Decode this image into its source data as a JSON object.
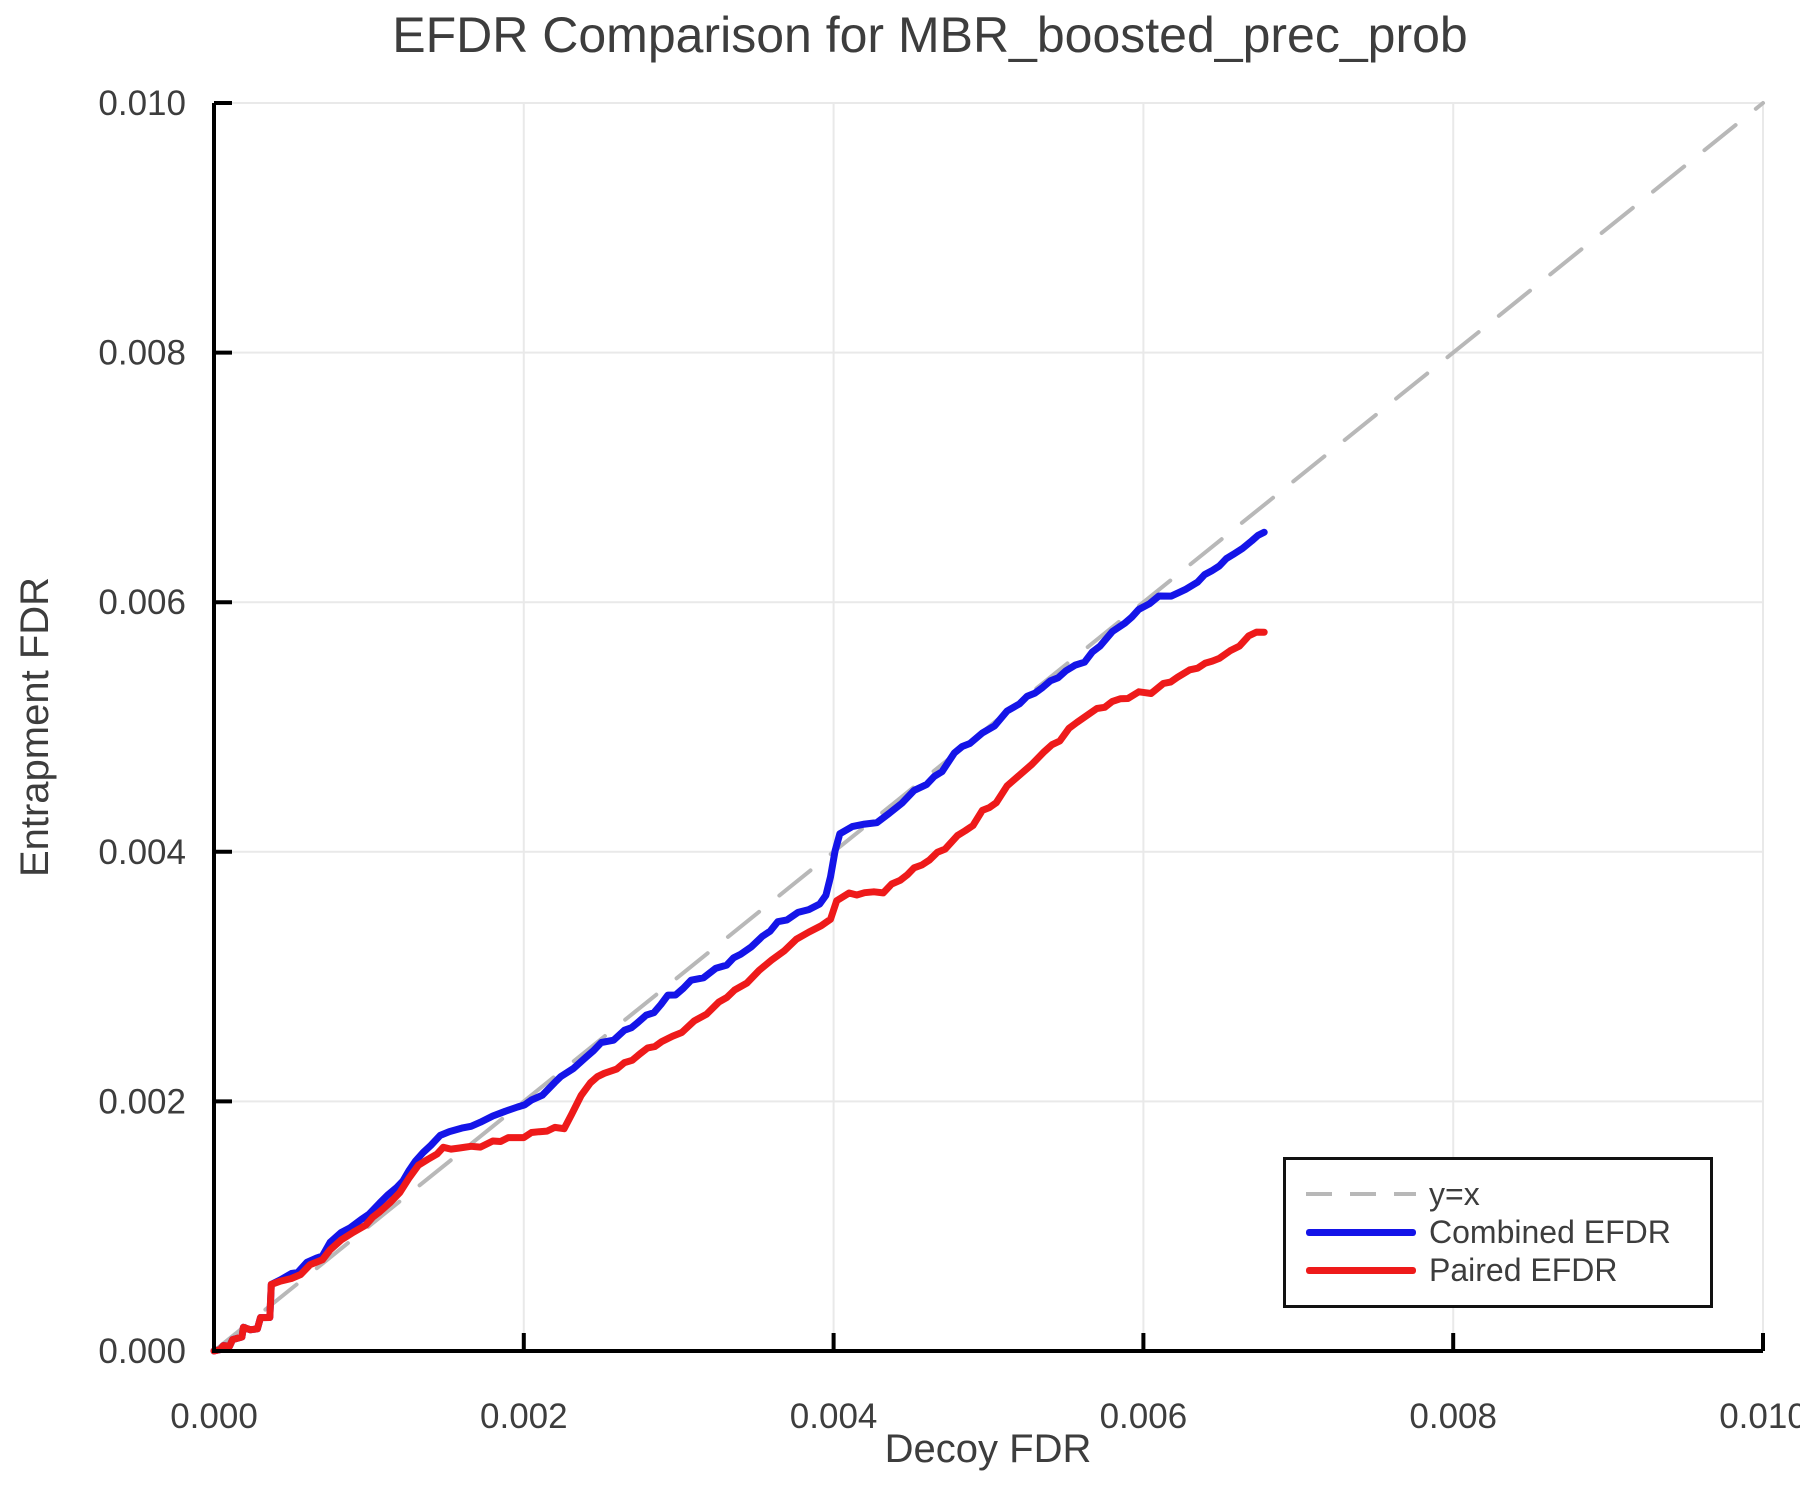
{
  "chart_data": {
    "type": "line",
    "title": "EFDR Comparison for MBR_boosted_prec_prob",
    "xlabel": "Decoy FDR",
    "ylabel": "Entrapment FDR",
    "xlim": [
      0,
      0.01
    ],
    "ylim": [
      0,
      0.01
    ],
    "xticks": [
      0,
      0.002,
      0.004,
      0.006,
      0.008,
      0.01
    ],
    "xticklabels": [
      "0.000",
      "0.002",
      "0.004",
      "0.006",
      "0.008",
      "0.010"
    ],
    "yticks": [
      0,
      0.002,
      0.004,
      0.006,
      0.008,
      0.01
    ],
    "yticklabels": [
      "0.000",
      "0.002",
      "0.004",
      "0.006",
      "0.008",
      "0.010"
    ],
    "grid": true,
    "grid_color": "#e9e9e9",
    "axis_color": "#000000",
    "text_color": "#3d3d3d",
    "legend_position": "lower right",
    "series": [
      {
        "name": "y=x",
        "color": "#b8b8b8",
        "width": 4,
        "dash": [
          40,
          26
        ],
        "points": [
          [
            0,
            0
          ],
          [
            0.01,
            0.01
          ]
        ]
      },
      {
        "name": "Combined EFDR",
        "color": "#1414e8",
        "width": 7,
        "points": [
          [
            0,
            0
          ],
          [
            4e-05,
            0
          ],
          [
            6e-05,
            4e-05
          ],
          [
            0.0001,
            5e-05
          ],
          [
            0.00012,
            0.0001
          ],
          [
            0.00018,
            0.0001
          ],
          [
            0.00019,
            0.00018
          ],
          [
            0.00028,
            0.00018
          ],
          [
            0.0003,
            0.00026
          ],
          [
            0.00036,
            0.00027
          ],
          [
            0.00037,
            0.00054
          ],
          [
            0.00043,
            0.00057
          ],
          [
            0.0005,
            0.00062
          ],
          [
            0.00054,
            0.00064
          ],
          [
            0.0006,
            0.0007
          ],
          [
            0.00066,
            0.00075
          ],
          [
            0.0007,
            0.00077
          ],
          [
            0.00075,
            0.00086
          ],
          [
            0.00082,
            0.00096
          ],
          [
            0.00088,
            0.00098
          ],
          [
            0.00095,
            0.00106
          ],
          [
            0.001,
            0.0011
          ],
          [
            0.00107,
            0.00118
          ],
          [
            0.00112,
            0.00126
          ],
          [
            0.00118,
            0.0013
          ],
          [
            0.00122,
            0.00136
          ],
          [
            0.00126,
            0.00146
          ],
          [
            0.0013,
            0.00152
          ],
          [
            0.00135,
            0.00158
          ],
          [
            0.0014,
            0.00166
          ],
          [
            0.00146,
            0.00172
          ],
          [
            0.00152,
            0.00176
          ],
          [
            0.0016,
            0.00178
          ],
          [
            0.00166,
            0.0018
          ],
          [
            0.00172,
            0.00184
          ],
          [
            0.0018,
            0.00188
          ],
          [
            0.00188,
            0.00192
          ],
          [
            0.00196,
            0.00196
          ],
          [
            0.00205,
            0.002
          ],
          [
            0.00212,
            0.00206
          ],
          [
            0.0022,
            0.00214
          ],
          [
            0.00224,
            0.0022
          ],
          [
            0.00232,
            0.00226
          ],
          [
            0.0024,
            0.00236
          ],
          [
            0.0025,
            0.00246
          ],
          [
            0.00258,
            0.0025
          ],
          [
            0.00265,
            0.00256
          ],
          [
            0.00274,
            0.00264
          ],
          [
            0.00284,
            0.00272
          ],
          [
            0.00293,
            0.00284
          ],
          [
            0.00298,
            0.00286
          ],
          [
            0.00308,
            0.00296
          ],
          [
            0.00316,
            0.003
          ],
          [
            0.00324,
            0.00306
          ],
          [
            0.00331,
            0.0031
          ],
          [
            0.0034,
            0.00318
          ],
          [
            0.00347,
            0.00324
          ],
          [
            0.00354,
            0.00332
          ],
          [
            0.00364,
            0.00343
          ],
          [
            0.0037,
            0.00346
          ],
          [
            0.00377,
            0.00351
          ],
          [
            0.00384,
            0.00354
          ],
          [
            0.00391,
            0.00358
          ],
          [
            0.00395,
            0.00364
          ],
          [
            0.00398,
            0.0038
          ],
          [
            0.00401,
            0.00402
          ],
          [
            0.00404,
            0.00415
          ],
          [
            0.00412,
            0.0042
          ],
          [
            0.0042,
            0.00422
          ],
          [
            0.00428,
            0.00424
          ],
          [
            0.00436,
            0.0043
          ],
          [
            0.00444,
            0.0044
          ],
          [
            0.00452,
            0.00448
          ],
          [
            0.0046,
            0.00455
          ],
          [
            0.0047,
            0.00464
          ],
          [
            0.00478,
            0.00479
          ],
          [
            0.00488,
            0.00488
          ],
          [
            0.00496,
            0.00494
          ],
          [
            0.00504,
            0.00502
          ],
          [
            0.00512,
            0.00512
          ],
          [
            0.0052,
            0.00519
          ],
          [
            0.0053,
            0.00528
          ],
          [
            0.0054,
            0.00536
          ],
          [
            0.0055,
            0.00545
          ],
          [
            0.00562,
            0.00553
          ],
          [
            0.00572,
            0.00565
          ],
          [
            0.0058,
            0.00576
          ],
          [
            0.00588,
            0.00584
          ],
          [
            0.00597,
            0.00593
          ],
          [
            0.00604,
            0.006
          ],
          [
            0.0061,
            0.00604
          ],
          [
            0.00618,
            0.00606
          ],
          [
            0.00627,
            0.00609
          ],
          [
            0.00635,
            0.00617
          ],
          [
            0.00644,
            0.00625
          ],
          [
            0.00649,
            0.0063
          ],
          [
            0.00658,
            0.00638
          ],
          [
            0.00664,
            0.00644
          ],
          [
            0.0067,
            0.00648
          ],
          [
            0.00674,
            0.00654
          ],
          [
            0.00678,
            0.00657
          ]
        ]
      },
      {
        "name": "Paired EFDR",
        "color": "#ee1a1a",
        "width": 7,
        "points": [
          [
            0,
            0
          ],
          [
            4e-05,
            0
          ],
          [
            6e-05,
            4e-05
          ],
          [
            0.0001,
            5e-05
          ],
          [
            0.00012,
            0.0001
          ],
          [
            0.00018,
            0.0001
          ],
          [
            0.00019,
            0.00018
          ],
          [
            0.00028,
            0.00018
          ],
          [
            0.0003,
            0.00026
          ],
          [
            0.00036,
            0.00027
          ],
          [
            0.00037,
            0.00054
          ],
          [
            0.00043,
            0.00056
          ],
          [
            0.0005,
            0.00058
          ],
          [
            0.00056,
            0.00062
          ],
          [
            0.00062,
            0.00068
          ],
          [
            0.0007,
            0.00074
          ],
          [
            0.00075,
            0.0008
          ],
          [
            0.00082,
            0.0009
          ],
          [
            0.0009,
            0.00094
          ],
          [
            0.00098,
            0.00102
          ],
          [
            0.00107,
            0.00111
          ],
          [
            0.00114,
            0.0012
          ],
          [
            0.0012,
            0.00126
          ],
          [
            0.00126,
            0.0014
          ],
          [
            0.00132,
            0.00148
          ],
          [
            0.00138,
            0.00154
          ],
          [
            0.00144,
            0.00158
          ],
          [
            0.00148,
            0.00162
          ],
          [
            0.00158,
            0.00163
          ],
          [
            0.00166,
            0.00164
          ],
          [
            0.00172,
            0.00164
          ],
          [
            0.0018,
            0.00168
          ],
          [
            0.0019,
            0.0017
          ],
          [
            0.002,
            0.00172
          ],
          [
            0.0021,
            0.00176
          ],
          [
            0.0022,
            0.00178
          ],
          [
            0.00226,
            0.00179
          ],
          [
            0.00231,
            0.0019
          ],
          [
            0.00237,
            0.00204
          ],
          [
            0.00243,
            0.00216
          ],
          [
            0.00252,
            0.00222
          ],
          [
            0.0026,
            0.00226
          ],
          [
            0.0027,
            0.00234
          ],
          [
            0.0028,
            0.00242
          ],
          [
            0.00289,
            0.00248
          ],
          [
            0.00296,
            0.00252
          ],
          [
            0.00302,
            0.00256
          ],
          [
            0.0031,
            0.00264
          ],
          [
            0.00318,
            0.0027
          ],
          [
            0.00326,
            0.0028
          ],
          [
            0.00336,
            0.00288
          ],
          [
            0.00344,
            0.00296
          ],
          [
            0.00352,
            0.00304
          ],
          [
            0.0036,
            0.00314
          ],
          [
            0.00368,
            0.0032
          ],
          [
            0.00376,
            0.0033
          ],
          [
            0.00384,
            0.00336
          ],
          [
            0.00392,
            0.0034
          ],
          [
            0.00398,
            0.00346
          ],
          [
            0.00402,
            0.00362
          ],
          [
            0.0041,
            0.00366
          ],
          [
            0.0042,
            0.00367
          ],
          [
            0.00432,
            0.00368
          ],
          [
            0.00443,
            0.00378
          ],
          [
            0.00452,
            0.00386
          ],
          [
            0.00462,
            0.00394
          ],
          [
            0.00472,
            0.00403
          ],
          [
            0.0048,
            0.00412
          ],
          [
            0.0049,
            0.00422
          ],
          [
            0.00496,
            0.00432
          ],
          [
            0.00505,
            0.0044
          ],
          [
            0.00512,
            0.00452
          ],
          [
            0.0052,
            0.00462
          ],
          [
            0.00528,
            0.0047
          ],
          [
            0.00536,
            0.0048
          ],
          [
            0.00546,
            0.0049
          ],
          [
            0.00552,
            0.00498
          ],
          [
            0.00562,
            0.00509
          ],
          [
            0.0057,
            0.00514
          ],
          [
            0.0058,
            0.0052
          ],
          [
            0.0059,
            0.00524
          ],
          [
            0.00597,
            0.00527
          ],
          [
            0.00605,
            0.00528
          ],
          [
            0.00613,
            0.00534
          ],
          [
            0.00622,
            0.0054
          ],
          [
            0.0063,
            0.00546
          ],
          [
            0.0064,
            0.0055
          ],
          [
            0.00649,
            0.00556
          ],
          [
            0.00656,
            0.0056
          ],
          [
            0.00662,
            0.00566
          ],
          [
            0.00668,
            0.00572
          ],
          [
            0.00673,
            0.00576
          ],
          [
            0.00678,
            0.00577
          ]
        ]
      }
    ]
  }
}
